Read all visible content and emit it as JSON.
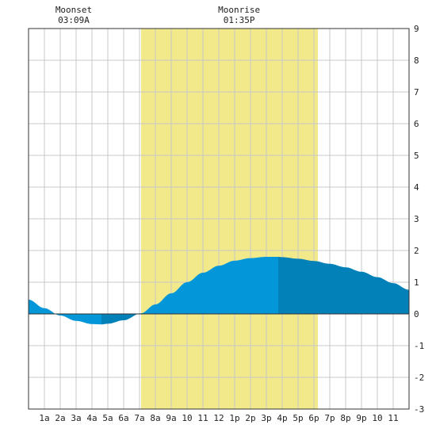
{
  "chart_data": {
    "type": "area",
    "title": "",
    "xlabel": "",
    "ylabel": "",
    "x_range_hours": [
      0,
      24
    ],
    "ylim": [
      -3,
      9
    ],
    "y_ticks": [
      -3,
      -2,
      -1,
      0,
      1,
      2,
      3,
      4,
      5,
      6,
      7,
      8,
      9
    ],
    "x_tick_labels": [
      "1a",
      "2a",
      "3a",
      "4a",
      "5a",
      "6a",
      "7a",
      "8a",
      "9a",
      "10",
      "11",
      "12",
      "1p",
      "2p",
      "3p",
      "4p",
      "5p",
      "6p",
      "7p",
      "8p",
      "9p",
      "10",
      "11"
    ],
    "x_tick_hours": [
      1,
      2,
      3,
      4,
      5,
      6,
      7,
      8,
      9,
      10,
      11,
      12,
      13,
      14,
      15,
      16,
      17,
      18,
      19,
      20,
      21,
      22,
      23
    ],
    "grid": true,
    "daylight_band_hours": [
      7.1,
      18.25
    ],
    "annotations": [
      {
        "name": "Moonset",
        "time": "03:09A",
        "hour": 3.15
      },
      {
        "name": "Moonrise",
        "time": "01:35P",
        "hour": 13.58
      }
    ],
    "series": [
      {
        "x": [
          0,
          1,
          2,
          3,
          4,
          4.6,
          5,
          6,
          7.1,
          8,
          9,
          10,
          11,
          12,
          13,
          14,
          15,
          15.75,
          16,
          17,
          18,
          19,
          20,
          21,
          22,
          23,
          24
        ],
        "y": [
          0.45,
          0.18,
          -0.05,
          -0.22,
          -0.32,
          -0.33,
          -0.31,
          -0.2,
          0.02,
          0.3,
          0.65,
          1.0,
          1.3,
          1.52,
          1.68,
          1.76,
          1.8,
          1.8,
          1.79,
          1.74,
          1.67,
          1.58,
          1.47,
          1.33,
          1.16,
          0.97,
          0.76
        ]
      }
    ],
    "band_colors": [
      "#0396d8",
      "#0280b8",
      "#0396d8",
      "#0280b8",
      "#0396d8"
    ],
    "band_hours": [
      0,
      4.6,
      7.1,
      15.75,
      24
    ],
    "colors": {
      "daylight": "#f2e98b",
      "grid": "#c8c8c8",
      "tide_light": "#0396d8",
      "tide_dark": "#0280b8",
      "axis": "#333333"
    }
  }
}
